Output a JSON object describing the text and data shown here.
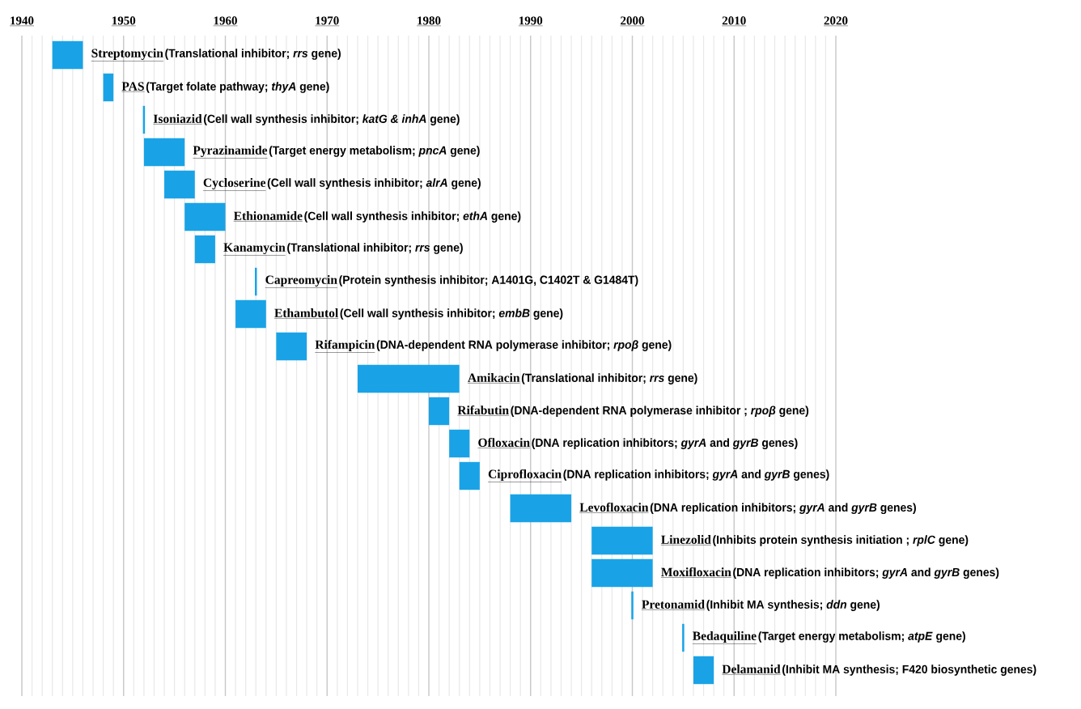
{
  "chart_data": {
    "type": "bar",
    "orientation": "horizontal",
    "grid": "x",
    "color": "#19a3e6",
    "categories": [
      "Streptomycin",
      "PAS",
      "Isoniazid",
      "Pyrazinamide",
      "Cycloserine",
      "Ethionamide",
      "Kanamycin",
      "Capreomycin",
      "Ethambutol",
      "Rifampicin",
      "Amikacin",
      "Rifabutin",
      "Ofloxacin",
      "Ciprofloxacin",
      "Levofloxacin",
      "Linezolid",
      "Moxifloxacin",
      "Pretonamid",
      "Bedaquiline",
      "Delamanid"
    ],
    "base": [
      1943,
      1948,
      1951.9,
      1952,
      1954,
      1956,
      1957,
      1962.9,
      1961,
      1965,
      1973,
      1980,
      1982,
      1983,
      1988,
      1996,
      1996,
      1999.9,
      2004.9,
      2006
    ],
    "values": [
      3,
      1,
      0.2,
      4,
      3,
      4,
      2,
      0.2,
      3,
      3,
      10,
      2,
      2,
      2,
      6,
      6,
      6,
      0.2,
      0.2,
      2
    ],
    "xlim": [
      1940,
      2020
    ],
    "xticks": [
      1940,
      1950,
      1960,
      1970,
      1980,
      1990,
      2000,
      2010,
      2020
    ],
    "annotations": [
      "(Translational inhibitor; *rrs* gene)",
      "(Target folate pathway; *thyA* gene)",
      "(Cell wall synthesis inhibitor; *katG & inhA* gene)",
      "(Target energy metabolism; *pncA* gene)",
      "(Cell wall synthesis inhibitor; *alrA* gene)",
      "(Cell wall synthesis inhibitor; *ethA* gene)",
      "(Translational inhibitor; *rrs* gene)",
      "(Protein synthesis inhibitor; A1401G, C1402T & G1484T)",
      "(Cell wall synthesis inhibitor; *embB* gene)",
      "(DNA-dependent RNA polymerase inhibitor; *rpoβ* gene)",
      "(Translational inhibitor; *rrs* gene)",
      "(DNA-dependent RNA polymerase inhibitor ; *rpoβ* gene)",
      "(DNA replication inhibitors; *gyrA* and *gyrB* genes)",
      "(DNA replication inhibitors; *gyrA* and *gyrB* genes)",
      "(DNA replication inhibitors; *gyrA* and *gyrB* genes)",
      "(Inhibits protein synthesis initiation ; *rplC* gene)",
      "(DNA replication inhibitors; *gyrA* and *gyrB* genes)",
      "(Inhibit MA synthesis; *ddn* gene)",
      "(Target energy metabolism; *atpE* gene)",
      "(Inhibit MA synthesis; F420 biosynthetic genes)"
    ]
  }
}
